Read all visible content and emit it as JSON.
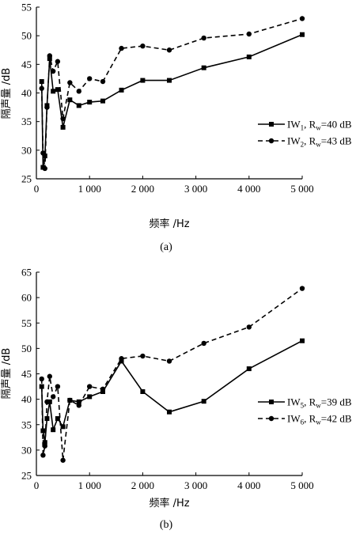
{
  "chart_data": [
    {
      "type": "line",
      "caption": "(a)",
      "xlabel": "频率 /Hz",
      "ylabel": "隔声量 /dB",
      "xlim": [
        0,
        5000
      ],
      "ylim": [
        25,
        55
      ],
      "xticks": [
        0,
        1000,
        2000,
        3000,
        4000,
        5000
      ],
      "xtick_labels": [
        "0",
        "1 000",
        "2 000",
        "3 000",
        "4 000",
        "5 000"
      ],
      "yticks": [
        25,
        30,
        35,
        40,
        45,
        50,
        55
      ],
      "legend_position": "right",
      "series": [
        {
          "name": "IW1, Rw=40 dB",
          "name_parts": {
            "a": "IW",
            "sub1": "1",
            "b": ", R",
            "sub2": "w",
            "c": "=40 dB"
          },
          "style": "solid",
          "marker": "square",
          "x": [
            100,
            125,
            160,
            200,
            250,
            315,
            400,
            500,
            630,
            800,
            1000,
            1250,
            1600,
            2000,
            2500,
            3150,
            4000,
            5000
          ],
          "y": [
            42.0,
            27.0,
            29.0,
            37.8,
            46.0,
            40.3,
            40.6,
            34.0,
            38.8,
            37.8,
            38.4,
            38.6,
            40.5,
            42.2,
            42.2,
            44.4,
            46.3,
            50.2
          ]
        },
        {
          "name": "IW2, Rw=43 dB",
          "name_parts": {
            "a": "IW",
            "sub1": "2",
            "b": ", R",
            "sub2": "w",
            "c": "=43 dB"
          },
          "style": "dashed",
          "marker": "circle",
          "x": [
            100,
            125,
            160,
            200,
            250,
            315,
            400,
            500,
            630,
            800,
            1000,
            1250,
            1600,
            2000,
            2500,
            3150,
            4000,
            5000
          ],
          "y": [
            40.8,
            29.5,
            26.8,
            37.5,
            46.5,
            43.8,
            45.5,
            35.5,
            41.8,
            40.3,
            42.5,
            42.0,
            47.8,
            48.2,
            47.5,
            49.6,
            50.3,
            53.0
          ]
        }
      ]
    },
    {
      "type": "line",
      "caption": "(b)",
      "xlabel": "频率 /Hz",
      "ylabel": "隔声量 /dB",
      "xlim": [
        0,
        5000
      ],
      "ylim": [
        25,
        65
      ],
      "xticks": [
        0,
        1000,
        2000,
        3000,
        4000,
        5000
      ],
      "xtick_labels": [
        "0",
        "1 000",
        "2 000",
        "3 000",
        "4 000",
        "5 000"
      ],
      "yticks": [
        25,
        30,
        35,
        40,
        45,
        50,
        55,
        60,
        65
      ],
      "legend_position": "right",
      "series": [
        {
          "name": "IW5, Rw=39 dB",
          "name_parts": {
            "a": "IW",
            "sub1": "5",
            "b": ", R",
            "sub2": "w",
            "c": "=39 dB"
          },
          "style": "solid",
          "marker": "square",
          "x": [
            100,
            125,
            160,
            200,
            250,
            315,
            400,
            500,
            630,
            800,
            1000,
            1250,
            1600,
            2000,
            2500,
            3150,
            4000,
            5000
          ],
          "y": [
            42.5,
            33.8,
            31.5,
            36.2,
            39.5,
            34.0,
            36.2,
            34.6,
            39.8,
            39.5,
            40.5,
            41.5,
            47.5,
            41.5,
            37.5,
            39.6,
            46.0,
            51.5
          ]
        },
        {
          "name": "IW6, Rw=42 dB",
          "name_parts": {
            "a": "IW",
            "sub1": "6",
            "b": ", R",
            "sub2": "w",
            "c": "=42 dB"
          },
          "style": "dashed",
          "marker": "circle",
          "x": [
            100,
            125,
            160,
            200,
            250,
            315,
            400,
            500,
            630,
            800,
            1000,
            1250,
            1600,
            2000,
            2500,
            3150,
            4000,
            5000
          ],
          "y": [
            44.0,
            29.0,
            30.8,
            39.5,
            44.5,
            40.5,
            42.5,
            28.0,
            39.8,
            38.8,
            42.5,
            42.0,
            48.0,
            48.5,
            47.5,
            51.0,
            54.2,
            61.8
          ]
        }
      ]
    }
  ]
}
